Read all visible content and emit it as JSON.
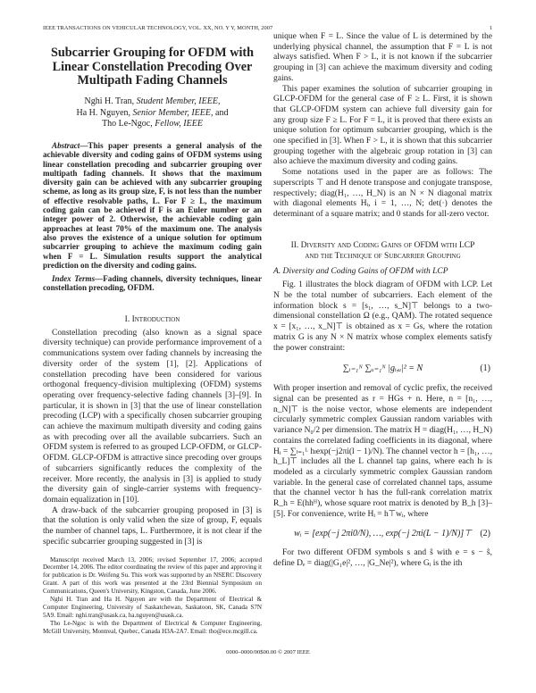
{
  "header": {
    "journal": "IEEE TRANSACTIONS ON VEHICULAR TECHNOLOGY, VOL. XX, NO. Y Y, MONTH, 2007",
    "page_number": "1"
  },
  "title": "Subcarrier Grouping for OFDM with Linear Constellation Precoding Over Multipath Fading Channels",
  "authors": [
    {
      "name": "Nghi H. Tran,",
      "role": "Student Member, IEEE,"
    },
    {
      "name": "Ha H. Nguyen,",
      "role": "Senior Member, IEEE,",
      "suffix": "and"
    },
    {
      "name": "Tho Le-Ngoc,",
      "role": "Fellow, IEEE"
    }
  ],
  "abstract": {
    "label": "Abstract—",
    "text": "This paper presents a general analysis of the achievable diversity and coding gains of OFDM systems using linear constellation precoding and subcarrier grouping over multipath fading channels. It shows that the maximum diversity gain can be achieved with any subcarrier grouping scheme, as long as its group size, F, is not less than the number of effective resolvable paths, L. For F ≥ L, the maximum coding gain can be achieved if F is an Euler number or an integer power of 2. Otherwise, the achievable coding gain approaches at least 70% of the maximum one. The analysis also proves the existence of a unique solution for optimum subcarrier grouping to achieve the maximum coding gain when F = L. Simulation results support the analytical prediction on the diversity and coding gains."
  },
  "index_terms": {
    "label": "Index Terms—",
    "text": "Fading channels, diversity techniques, linear constellation precoding, OFDM."
  },
  "section1": {
    "heading": "I. Introduction",
    "paragraphs": [
      "Constellation precoding (also known as a signal space diversity technique) can provide performance improvement of a communications system over fading channels by increasing the diversity order of the system [1], [2]. Applications of constellation precoding have been considered for various orthogonal frequency-division multiplexing (OFDM) systems operating over frequency-selective fading channels [3]–[9]. In particular, it is shown in [3] that the use of linear constellation precoding (LCP) with a specifically chosen subcarrier grouping can achieve the maximum multipath diversity and coding gains as with precoding over all the available subcarriers. Such an OFDM system is referred to as grouped LCP-OFDM, or GLCP-OFDM. GLCP-OFDM is attractive since precoding over groups of subcarriers significantly reduces the complexity of the receiver. More recently, the analysis in [3] is applied to study the diversity gain of single-carrier systems with frequency-domain equalization in [10].",
      "A draw-back of the subcarrier grouping proposed in [3] is that the solution is only valid when the size of group, F, equals the number of channel taps, L. Furthermore, it is not clear if the specific subcarrier grouping suggested in [3] is"
    ]
  },
  "footnotes": [
    "Manuscript received March 13, 2006; revised September 17, 2006; accepted December 14, 2006. The editor coordinating the review of this paper and approving it for publication is Dr. Weifeng Su. This work was supported by an NSERC Discovery Grant. A part of this work was presented at the 23rd Biennial Symposium on Communications, Queen's University, Kingston, Canada, June 2006.",
    "Nghi H. Tran and Ha H. Nguyen are with the Department of Electrical & Computer Engineering, University of Saskatchewan, Saskatoon, SK, Canada S7N 5A9. Email: nghi.tran@usask.ca, ha.nguyen@usask.ca.",
    "Tho Le-Ngoc is with the Department of Electrical & Computer Engineering, McGill University, Montreal, Quebec, Canada H3A-2A7. Email: tho@ece.mcgill.ca."
  ],
  "right_intro": [
    "unique when F = L. Since the value of L is determined by the underlying physical channel, the assumption that F = L is not always satisfied. When F > L, it is not known if the subcarrier grouping in [3] can achieve the maximum diversity and coding gains.",
    "This paper examines the solution of subcarrier grouping in GLCP-OFDM for the general case of F ≥ L. First, it is shown that GLCP-OFDM system can achieve full diversity gain for any group size F ≥ L. For F = L, it is proved that there exists an unique solution for optimum subcarrier grouping, which is the one specified in [3]. When F > L, it is shown that this subcarrier grouping together with the algebraic group rotation in [3] can also achieve the maximum diversity and coding gains.",
    "Some notations used in the paper are as follows: The superscripts ⊤ and H denote transpose and conjugate transpose, respectively; diag(H₁, …, H_N) is an N × N diagonal matrix with diagonal elements Hᵢ, i = 1, …, N; det(·) denotes the determinant of a square matrix; and 0 stands for all-zero vector."
  ],
  "section2": {
    "heading_line1": "II. Diversity and Coding Gains of OFDM with LCP",
    "heading_line2": "and the Technique of Subcarrier Grouping",
    "subheading": "A. Diversity and Coding Gains of OFDM with LCP",
    "para1": "Fig. 1 illustrates the block diagram of OFDM with LCP. Let N be the total number of subcarriers. Each element of the information block s = [s₁, …, s_N]⊤ belongs to a two-dimensional constellation Ω (e.g., QAM). The rotated sequence x = [x₁, …, x_N]⊤ is obtained as x = Gs, where the rotation matrix G is any N × N matrix whose complex elements satisfy the power constraint:",
    "eq1": "∑ᵢ₌₁ᴺ ∑ᵤ₌₁ᴺ |gᵢ,ᵤ|² = N",
    "eq1_num": "(1)",
    "para2": "With proper insertion and removal of cyclic prefix, the received signal can be presented as r = HGs + n. Here, n = [n₁, …, n_N]⊤ is the noise vector, whose elements are independent circularly symmetric complex Gaussian random variables with variance N₀/2 per dimension. The matrix H = diag(H₁, …, H_N) contains the correlated fading coefficients in its diagonal, where Hᵢ = ∑ₗ₌₁ᴸ hₗexp(−j2πi(l − 1)/N). The channel vector h = [h₁, …, h_L]⊤ includes all the L channel tap gains, where each hₗ is modeled as a circularly symmetric complex Gaussian random variable. In the general case of correlated channel taps, assume that the channel vector h has the full-rank correlation matrix R_h = E(hhᴴ), whose square root matrix is denoted by B_h [3]–[5]. For convenience, write Hᵢ = h⊤wᵢ, where",
    "eq2": "wᵢ = [exp(−j 2πi0/N), …, exp(−j 2πi(L − 1)/N)]⊤",
    "eq2_num": "(2)",
    "para3": "For two different OFDM symbols s and ŝ with e = s − ŝ, define Dₑ = diag(|G₁e|², …, |G_Ne|²), where Gᵢ is the ith"
  },
  "footer": "0000–0000/00$00.00 © 2007 IEEE"
}
